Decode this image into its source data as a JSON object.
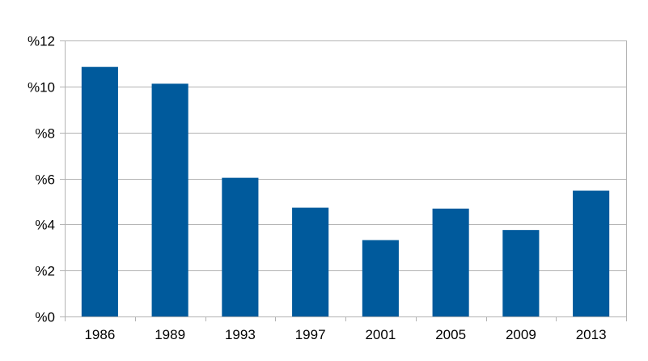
{
  "chart_data": {
    "type": "bar",
    "categories": [
      "1986",
      "1989",
      "1993",
      "1997",
      "2001",
      "2005",
      "2009",
      "2013"
    ],
    "values": [
      10.85,
      10.12,
      6.03,
      4.73,
      3.32,
      4.69,
      3.76,
      5.47
    ],
    "title": "",
    "xlabel": "",
    "ylabel": "",
    "ylim": [
      0,
      12
    ],
    "yticks": [
      0,
      2,
      4,
      6,
      8,
      10,
      12
    ],
    "ytick_labels": [
      "%0",
      "%2",
      "%4",
      "%6",
      "%8",
      "%10",
      "%12"
    ],
    "grid": true,
    "legend": "none",
    "colors": {
      "bar": "#005a9c",
      "grid": "#b3b3b3",
      "axis": "#b3b3b3"
    }
  }
}
